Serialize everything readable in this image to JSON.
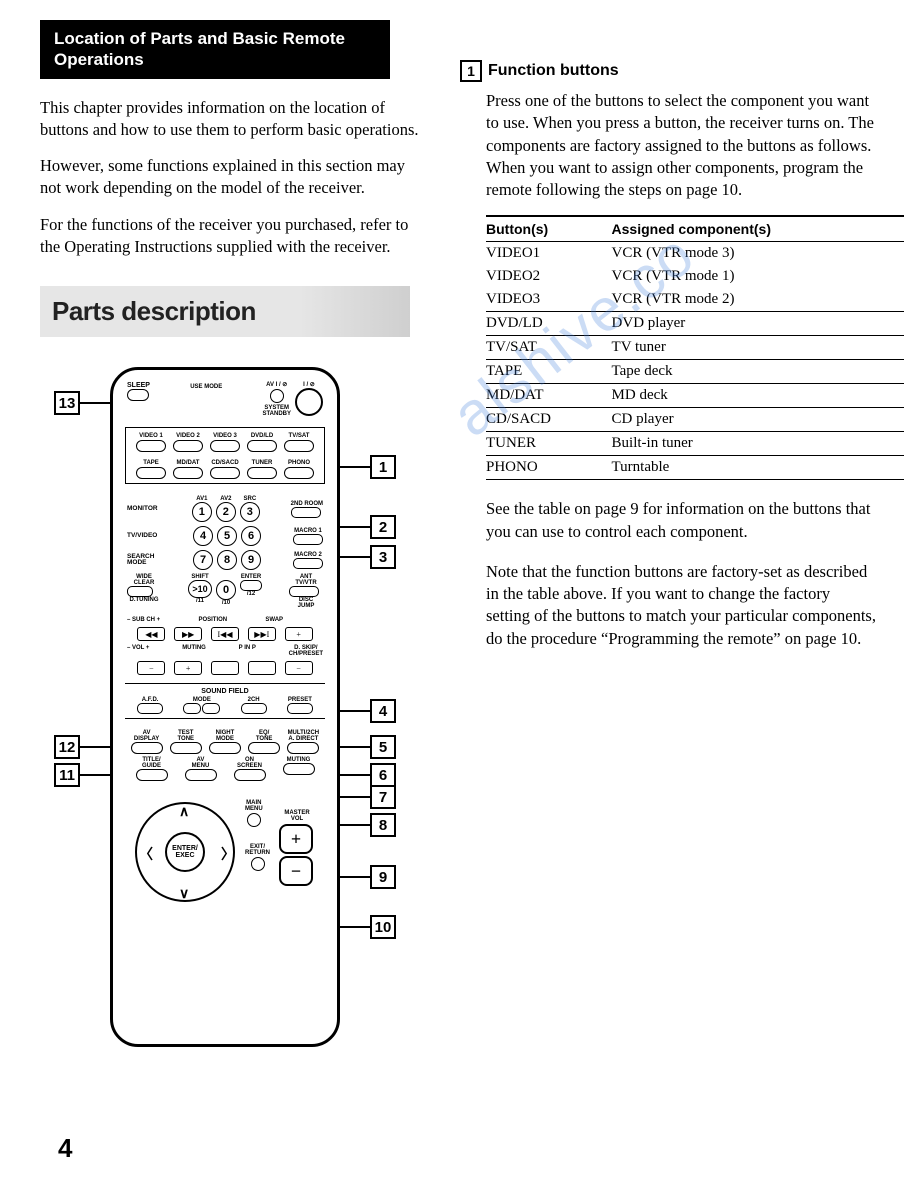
{
  "header_title": "Location of Parts and Basic Remote Operations",
  "intro_p1": "This chapter provides information on the location of buttons and how to use them to perform basic operations.",
  "intro_p2": "However, some functions explained in this section may not work depending on the model of the receiver.",
  "intro_p3": "For the functions of the receiver you purchased, refer to the Operating Instructions supplied with the receiver.",
  "parts_heading": "Parts description",
  "remote": {
    "sleep": "SLEEP",
    "av_power": "AV I / ⊘",
    "power": "I / ⊘",
    "use_mode": "USE MODE",
    "system_standby": "SYSTEM\nSTANDBY",
    "func_row1": [
      "VIDEO 1",
      "VIDEO 2",
      "VIDEO 3",
      "DVD/LD",
      "TV/SAT"
    ],
    "func_row2": [
      "TAPE",
      "MD/DAT",
      "CD/SACD",
      "TUNER",
      "PHONO"
    ],
    "monitor": "MONITOR",
    "av1": "AV1",
    "av2": "AV2",
    "src": "SRC",
    "second_room": "2ND ROOM",
    "tv_video": "TV/VIDEO",
    "macro1": "MACRO 1",
    "search_mode": "SEARCH\nMODE",
    "macro2": "MACRO 2",
    "wide": "WIDE",
    "clear": "CLEAR",
    "shift": "SHIFT",
    "gt10": ">10",
    "zero": "0",
    "enter": "ENTER",
    "ant": "ANT\nTV/VTR",
    "d_tuning": "D.TUNING",
    "slash11": "/11",
    "slash10": "/10",
    "slash12": "/12",
    "disc": "DISC",
    "jump": "JUMP",
    "subch": "– SUB CH +",
    "position": "POSITION",
    "swap": "SWAP",
    "rev2": "◀◀",
    "fwd2": "▶▶",
    "prev": "I◀◀",
    "next": "▶▶I",
    "plus": "+",
    "vol": "– VOL +",
    "muting": "MUTING",
    "pinp": "P IN P",
    "dskip": "D. SKIP/\nCH/PRESET",
    "minus": "−",
    "plus2": "+",
    "sound_field": "SOUND FIELD",
    "afd": "A.F.D.",
    "mode": "MODE",
    "minus3": "–",
    "plus3": "+",
    "two_ch": "2CH",
    "preset": "PRESET",
    "av_lbl": "AV\nDISPLAY",
    "test_tone": "TEST\nTONE",
    "night": "NIGHT\nMODE",
    "eq_tone": "EQ/\nTONE",
    "multi": "MULTI/2CH\nA. DIRECT",
    "title_guide": "TITLE/\nGUIDE",
    "av_menu": "AV\nMENU",
    "on_screen": "ON\nSCREEN",
    "muting2": "MUTING",
    "main_menu": "MAIN\nMENU",
    "exit_return": "EXIT/\nRETURN",
    "master_vol": "MASTER\nVOL",
    "enter_exec": "ENTER/\nEXEC"
  },
  "callouts": {
    "c1": "1",
    "c2": "2",
    "c3": "3",
    "c4": "4",
    "c5": "5",
    "c6": "6",
    "c7": "7",
    "c8": "8",
    "c9": "9",
    "c10": "10",
    "c11": "11",
    "c12": "12",
    "c13": "13"
  },
  "right": {
    "h1_num": "1",
    "h1_title": "Function buttons",
    "h1_body": "Press one of the buttons to select the component you want to use.  When you press a button, the receiver turns on. The components are factory assigned to the buttons as follows. When you want to assign other components, program the remote following the steps on page 10.",
    "table_h1": "Button(s)",
    "table_h2": "Assigned component(s)",
    "rows": [
      {
        "b": "VIDEO1",
        "a": "VCR (VTR mode 3)",
        "rule": false
      },
      {
        "b": "VIDEO2",
        "a": "VCR (VTR mode 1)",
        "rule": false
      },
      {
        "b": "VIDEO3",
        "a": "VCR (VTR mode 2)",
        "rule": true
      },
      {
        "b": "DVD/LD",
        "a": "DVD player",
        "rule": true
      },
      {
        "b": "TV/SAT",
        "a": "TV tuner",
        "rule": true
      },
      {
        "b": "TAPE",
        "a": "Tape deck",
        "rule": true
      },
      {
        "b": "MD/DAT",
        "a": "MD deck",
        "rule": true
      },
      {
        "b": "CD/SACD",
        "a": "CD player",
        "rule": true
      },
      {
        "b": "TUNER",
        "a": "Built-in tuner",
        "rule": true
      },
      {
        "b": "PHONO",
        "a": "Turntable",
        "rule": true
      }
    ],
    "after1": "See the table on page 9 for information on the buttons that you can use to control each component.",
    "after2": "Note that the function buttons are factory-set as described in the table above.  If you want to change the factory setting of the buttons to match your particular components, do the procedure “Programming the remote” on page 10."
  },
  "watermark": "alshive.co",
  "page_number": "4"
}
